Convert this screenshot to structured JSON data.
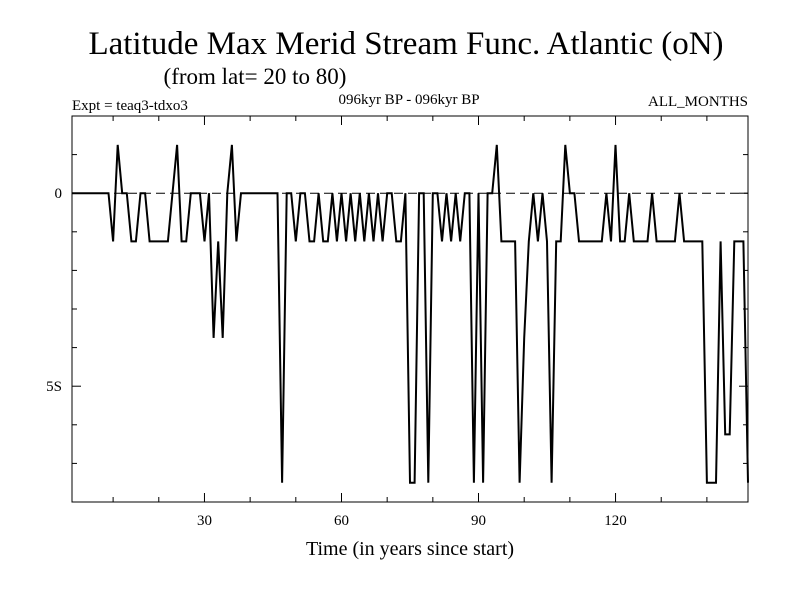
{
  "chart_data": {
    "type": "line",
    "title": "Latitude Max Merid Stream Func. Atlantic (oN)",
    "subtitle": "(from lat= 20 to 80)",
    "left_note": "Expt = teaq3-tdxo3",
    "center_note": "096kyr BP - 096kyr BP",
    "right_note": "ALL_MONTHS",
    "xlabel": "Time (in years since start)",
    "ylabel": "",
    "xlim": [
      1,
      149
    ],
    "ylim": [
      -8.0,
      2.0
    ],
    "x_ticks": [
      30,
      60,
      90,
      120
    ],
    "x_tick_labels": [
      "30",
      "60",
      "90",
      "120"
    ],
    "y_ticks": [
      0,
      -5
    ],
    "y_tick_labels": [
      "0",
      "5S"
    ],
    "reference_line": 0,
    "series": [
      {
        "x": [
          1,
          2,
          3,
          4,
          5,
          6,
          7,
          8,
          9,
          10,
          11,
          12,
          13,
          14,
          15,
          16,
          17,
          18,
          19,
          20,
          21,
          22,
          23,
          24,
          25,
          26,
          27,
          28,
          29,
          30,
          31,
          32,
          33,
          34,
          35,
          36,
          37,
          38,
          39,
          40,
          41,
          42,
          43,
          44,
          45,
          46,
          47,
          48,
          49,
          50,
          51,
          52,
          53,
          54,
          55,
          56,
          57,
          58,
          59,
          60,
          61,
          62,
          63,
          64,
          65,
          66,
          67,
          68,
          69,
          70,
          71,
          72,
          73,
          74,
          75,
          76,
          77,
          78,
          79,
          80,
          81,
          82,
          83,
          84,
          85,
          86,
          87,
          88,
          89,
          90,
          91,
          92,
          93,
          94,
          95,
          96,
          97,
          98,
          99,
          100,
          101,
          102,
          103,
          104,
          105,
          106,
          107,
          108,
          109,
          110,
          111,
          112,
          113,
          114,
          115,
          116,
          117,
          118,
          119,
          120,
          121,
          122,
          123,
          124,
          125,
          126,
          127,
          128,
          129,
          130,
          131,
          132,
          133,
          134,
          135,
          136,
          137,
          138,
          139,
          140,
          141,
          142,
          143,
          144,
          145,
          146,
          147,
          148,
          149
        ],
        "values": [
          0,
          0,
          0,
          0,
          0,
          0,
          0,
          0,
          0,
          -1.25,
          1.25,
          0,
          0,
          -1.25,
          -1.25,
          0,
          0,
          -1.25,
          -1.25,
          -1.25,
          -1.25,
          -1.25,
          0,
          1.25,
          -1.25,
          -1.25,
          0,
          0,
          0,
          -1.25,
          0,
          -3.75,
          -1.25,
          -3.75,
          0,
          1.25,
          -1.25,
          0,
          0,
          0,
          0,
          0,
          0,
          0,
          0,
          0,
          -7.5,
          0,
          0,
          -1.25,
          0,
          0,
          -1.25,
          -1.25,
          0,
          -1.25,
          -1.25,
          0,
          -1.25,
          0,
          -1.25,
          0,
          -1.25,
          0,
          -1.25,
          0,
          -1.25,
          0,
          -1.25,
          0,
          0,
          -1.25,
          -1.25,
          0,
          -7.5,
          -7.5,
          0,
          0,
          -7.5,
          0,
          0,
          -1.25,
          0,
          -1.25,
          0,
          -1.25,
          0,
          0,
          -7.5,
          0,
          -7.5,
          0,
          0,
          1.25,
          -1.25,
          -1.25,
          -1.25,
          -1.25,
          -7.5,
          -3.75,
          -1.25,
          0,
          -1.25,
          0,
          -1.25,
          -7.5,
          -1.25,
          -1.25,
          1.25,
          0,
          0,
          -1.25,
          -1.25,
          -1.25,
          -1.25,
          -1.25,
          -1.25,
          0,
          -1.25,
          1.25,
          -1.25,
          -1.25,
          0,
          -1.25,
          -1.25,
          -1.25,
          -1.25,
          0,
          -1.25,
          -1.25,
          -1.25,
          -1.25,
          -1.25,
          0,
          -1.25,
          -1.25,
          -1.25,
          -1.25,
          -1.25,
          -7.5,
          -7.5,
          -7.5,
          -1.25,
          -6.25,
          -6.25,
          -1.25,
          -1.25,
          -1.25,
          -7.5
        ]
      }
    ]
  }
}
